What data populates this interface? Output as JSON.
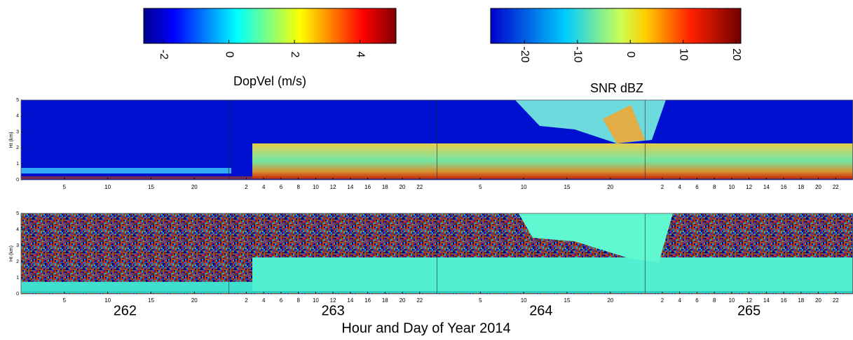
{
  "colorbars": [
    {
      "label": "DopVel (m/s)",
      "lim": [
        -2.6,
        5.1
      ],
      "ticks": [
        -2,
        0,
        2,
        4
      ]
    },
    {
      "label": "SNR dBZ",
      "lim": [
        -26.4,
        20.9
      ],
      "ticks": [
        -20,
        -10,
        0,
        10,
        20
      ]
    }
  ],
  "ylabel": "Ht (km)",
  "ylim": [
    0,
    5
  ],
  "yticks": [
    0,
    1,
    2,
    3,
    4,
    5
  ],
  "xlim": [
    0,
    24
  ],
  "days": [
    {
      "label": 262,
      "hours": [
        5,
        10,
        15,
        20
      ]
    },
    {
      "label": 263,
      "hours": [
        2,
        4,
        6,
        8,
        10,
        12,
        14,
        16,
        18,
        20,
        22
      ]
    },
    {
      "label": 264,
      "hours": [
        5,
        10,
        15,
        20
      ]
    },
    {
      "label": 265,
      "hours": [
        2,
        4,
        6,
        8,
        10,
        12,
        14,
        16,
        18,
        20,
        22
      ]
    }
  ],
  "xlabel": "Hour and Day of Year 2014"
}
